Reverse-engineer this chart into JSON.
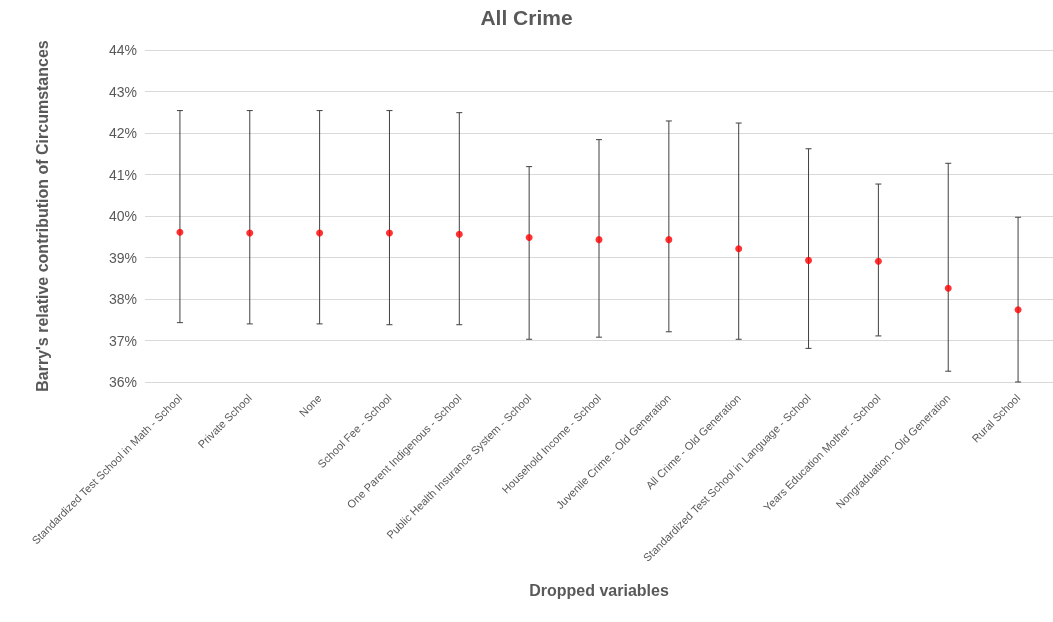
{
  "chart_data": {
    "type": "scatter",
    "title": "All Crime",
    "xlabel": "Dropped variables",
    "ylabel": "Barry's relative contribution of Circumstances",
    "categories": [
      "Standardized Test School in Math - School",
      "Private School",
      "None",
      "School Fee - School",
      "One Parent Indigenous - School",
      "Public Health Insurance System - School",
      "Household Income - School",
      "Juvenile Crime - Old Generation",
      "All Crime - Old Generation",
      "Standardized Test School in Language - School",
      "Years Education Mother - School",
      "Nongraduation - Old Generation",
      "Rural School"
    ],
    "values": [
      39.61,
      39.59,
      39.59,
      39.59,
      39.56,
      39.48,
      39.43,
      39.43,
      39.21,
      38.93,
      38.91,
      38.26,
      37.74
    ],
    "errors": [
      [
        37.43,
        42.54
      ],
      [
        37.4,
        42.54
      ],
      [
        37.4,
        42.54
      ],
      [
        37.38,
        42.54
      ],
      [
        37.38,
        42.49
      ],
      [
        37.03,
        41.19
      ],
      [
        37.08,
        41.84
      ],
      [
        37.21,
        42.29
      ],
      [
        37.03,
        42.24
      ],
      [
        36.81,
        41.62
      ],
      [
        37.11,
        40.77
      ],
      [
        36.26,
        41.27
      ],
      [
        36.0,
        39.97
      ]
    ],
    "color": "#ff0000",
    "marker": "circle",
    "ylim": [
      36,
      44
    ],
    "yticks": [
      {
        "value": 36,
        "label": "36%"
      },
      {
        "value": 37,
        "label": "37%"
      },
      {
        "value": 38,
        "label": "38%"
      },
      {
        "value": 39,
        "label": "39%"
      },
      {
        "value": 40,
        "label": "40%"
      },
      {
        "value": 41,
        "label": "41%"
      },
      {
        "value": 42,
        "label": "42%"
      },
      {
        "value": 43,
        "label": "43%"
      },
      {
        "value": 44,
        "label": "44%"
      }
    ],
    "grid": "y"
  }
}
